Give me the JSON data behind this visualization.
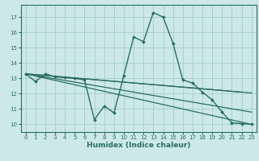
{
  "xlabel": "Humidex (Indice chaleur)",
  "background_color": "#cce8e8",
  "line_color": "#2a6e63",
  "grid_color": "#aad0d0",
  "xlim": [
    -0.5,
    23.5
  ],
  "ylim": [
    9.5,
    17.8
  ],
  "yticks": [
    10,
    11,
    12,
    13,
    14,
    15,
    16,
    17
  ],
  "xticks": [
    0,
    1,
    2,
    3,
    4,
    5,
    6,
    7,
    8,
    9,
    10,
    11,
    12,
    13,
    14,
    15,
    16,
    17,
    18,
    19,
    20,
    21,
    22,
    23
  ],
  "main_curve_x": [
    0,
    1,
    2,
    3,
    4,
    5,
    6,
    7,
    8,
    9,
    10,
    11,
    12,
    13,
    14,
    15,
    16,
    17,
    18,
    19,
    20,
    21,
    22,
    23
  ],
  "main_curve_y": [
    13.3,
    12.8,
    13.3,
    13.1,
    13.05,
    13.0,
    12.9,
    10.3,
    11.2,
    10.75,
    13.2,
    15.7,
    15.4,
    17.3,
    17.0,
    15.3,
    12.9,
    12.7,
    12.1,
    11.6,
    10.8,
    10.1,
    10.05,
    10.0
  ],
  "fan_lines": [
    {
      "x": [
        0,
        23
      ],
      "y": [
        13.3,
        12.05
      ]
    },
    {
      "x": [
        0,
        22
      ],
      "y": [
        13.3,
        12.1
      ]
    },
    {
      "x": [
        0,
        23
      ],
      "y": [
        13.3,
        10.8
      ]
    },
    {
      "x": [
        0,
        23
      ],
      "y": [
        13.3,
        10.0
      ]
    }
  ]
}
